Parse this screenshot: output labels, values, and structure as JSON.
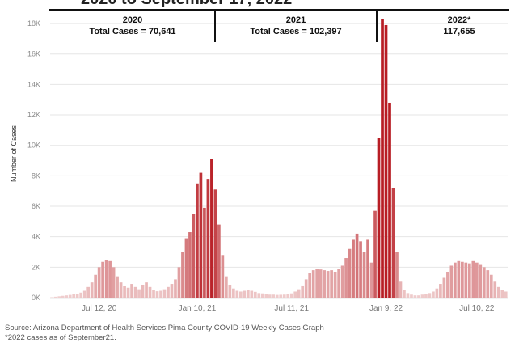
{
  "title_fragment": "2020 to September 17, 2022",
  "chart_data": {
    "type": "bar",
    "ylabel": "Number of Cases",
    "ylim": [
      0,
      18800
    ],
    "yticks": [
      0,
      2000,
      4000,
      6000,
      8000,
      10000,
      12000,
      14000,
      16000,
      18000
    ],
    "ytick_labels": [
      "0K",
      "2K",
      "4K",
      "6K",
      "8K",
      "10K",
      "12K",
      "14K",
      "16K",
      "18K"
    ],
    "xticks": [
      "Jul 12, 20",
      "Jan 10, 21",
      "Jul 11, 21",
      "Jan 9, 22",
      "Jul 10, 22"
    ],
    "panels": [
      {
        "year": "2020",
        "total_label": "Total Cases = 70,641"
      },
      {
        "year": "2021",
        "total_label": "Total Cases = 102,397"
      },
      {
        "year": "2022*",
        "total_label": "117,655"
      }
    ],
    "colors": {
      "low": "#f1d3d3",
      "high": "#b81d24"
    },
    "weekly_cases": [
      30,
      60,
      90,
      120,
      150,
      180,
      220,
      260,
      330,
      450,
      700,
      1000,
      1500,
      2000,
      2350,
      2450,
      2400,
      2000,
      1400,
      1000,
      750,
      650,
      900,
      700,
      550,
      850,
      1000,
      700,
      500,
      420,
      450,
      550,
      700,
      900,
      1200,
      2000,
      3000,
      3900,
      4300,
      5500,
      7500,
      8200,
      5900,
      7800,
      9100,
      7100,
      4800,
      2800,
      1400,
      850,
      600,
      450,
      400,
      450,
      500,
      450,
      380,
      300,
      280,
      250,
      200,
      200,
      180,
      190,
      200,
      230,
      280,
      400,
      550,
      800,
      1200,
      1600,
      1800,
      1900,
      1850,
      1800,
      1750,
      1800,
      1700,
      1900,
      2100,
      2600,
      3200,
      3800,
      4200,
      3700,
      3000,
      3800,
      2300,
      5700,
      10500,
      18300,
      17900,
      12800,
      7200,
      3000,
      1100,
      500,
      300,
      200,
      150,
      150,
      200,
      250,
      300,
      400,
      600,
      900,
      1300,
      1700,
      2100,
      2300,
      2400,
      2350,
      2300,
      2250,
      2400,
      2300,
      2200,
      2000,
      1800,
      1500,
      1100,
      700,
      500,
      400
    ]
  },
  "source_line": "Source: Arizona Department of Health Services Pima County COVID-19 Weekly Cases Graph",
  "note_line": "*2022 cases as of September21."
}
